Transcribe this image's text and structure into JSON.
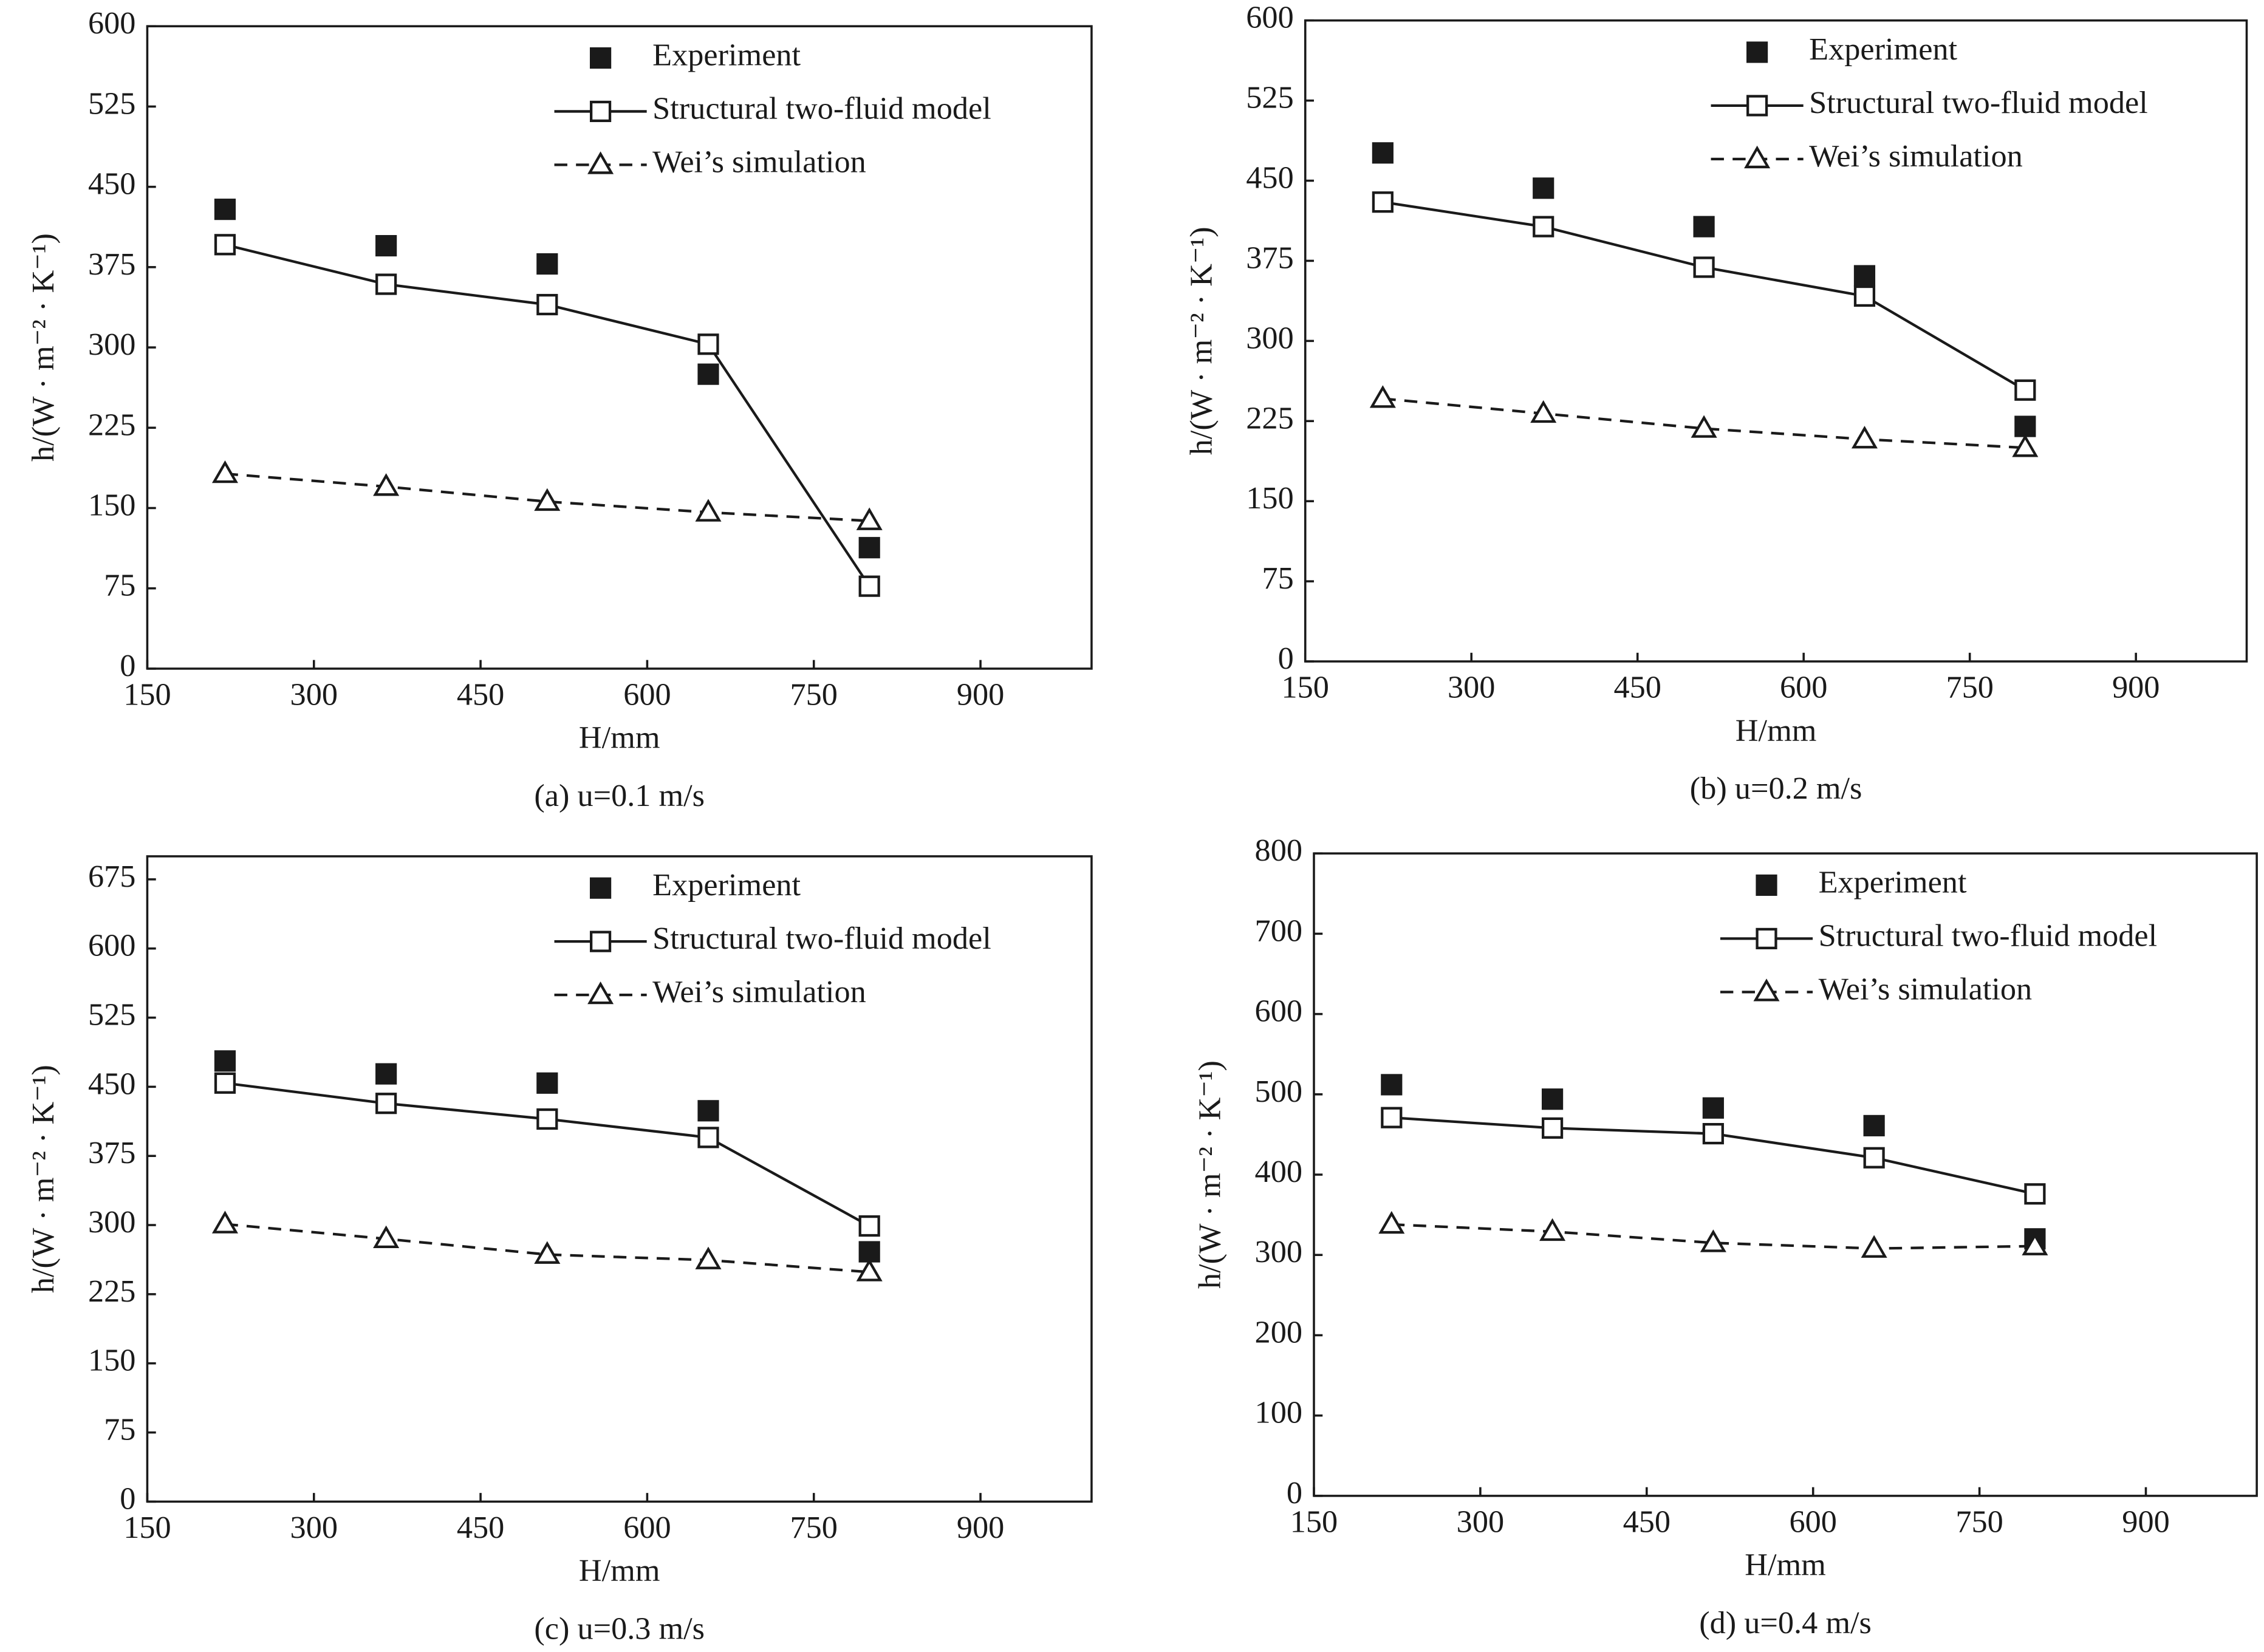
{
  "chart_data": [
    {
      "type": "line",
      "title": "(a) u=0.1 m/s",
      "x_label": "H/mm",
      "y_label": "h/(W · m⁻² · K⁻¹)",
      "x": [
        220,
        365,
        510,
        655,
        800
      ],
      "xlim": [
        150,
        1000
      ],
      "xticks": [
        150,
        300,
        450,
        600,
        750,
        900
      ],
      "ylim": [
        0,
        600
      ],
      "yticks": [
        0,
        75,
        150,
        225,
        300,
        375,
        450,
        525,
        600
      ],
      "legend": "top",
      "series": [
        {
          "name": "Experiment",
          "color": "#1a1a1a",
          "marker": "filled-square",
          "line_style": "none",
          "values": [
            429,
            395,
            378,
            275,
            113
          ]
        },
        {
          "name": "Structural two-fluid model",
          "color": "#1a1a1a",
          "marker": "open-square",
          "line_style": "solid",
          "values": [
            396,
            359,
            340,
            303,
            77
          ]
        },
        {
          "name": "Wei’s simulation",
          "color": "#1a1a1a",
          "marker": "open-triangle",
          "line_style": "dashed",
          "values": [
            182,
            170,
            156,
            146,
            138
          ]
        }
      ]
    },
    {
      "type": "line",
      "title": "(b) u=0.2 m/s",
      "x_label": "H/mm",
      "y_label": "h/(W · m⁻² · K⁻¹)",
      "x": [
        220,
        365,
        510,
        655,
        800
      ],
      "xlim": [
        150,
        1000
      ],
      "xticks": [
        150,
        300,
        450,
        600,
        750,
        900
      ],
      "ylim": [
        0,
        600
      ],
      "yticks": [
        0,
        75,
        150,
        225,
        300,
        375,
        450,
        525,
        600
      ],
      "legend": "top",
      "series": [
        {
          "name": "Experiment",
          "color": "#1a1a1a",
          "marker": "filled-square",
          "line_style": "none",
          "values": [
            476,
            443,
            407,
            361,
            220
          ]
        },
        {
          "name": "Structural two-fluid model",
          "color": "#1a1a1a",
          "marker": "open-square",
          "line_style": "solid",
          "values": [
            430,
            407,
            369,
            342,
            254
          ]
        },
        {
          "name": "Wei’s simulation",
          "color": "#1a1a1a",
          "marker": "open-triangle",
          "line_style": "dashed",
          "values": [
            246,
            232,
            218,
            208,
            200
          ]
        }
      ]
    },
    {
      "type": "line",
      "title": "(c) u=0.3 m/s",
      "x_label": "H/mm",
      "y_label": "h/(W · m⁻² · K⁻¹)",
      "x": [
        220,
        365,
        510,
        655,
        800
      ],
      "xlim": [
        150,
        1000
      ],
      "xticks": [
        150,
        300,
        450,
        600,
        750,
        900
      ],
      "ylim": [
        0,
        700
      ],
      "yticks": [
        0,
        75,
        150,
        225,
        300,
        375,
        450,
        525,
        600,
        675
      ],
      "legend": "top",
      "series": [
        {
          "name": "Experiment",
          "color": "#1a1a1a",
          "marker": "filled-square",
          "line_style": "none",
          "values": [
            478,
            464,
            454,
            424,
            271
          ]
        },
        {
          "name": "Structural two-fluid model",
          "color": "#1a1a1a",
          "marker": "open-square",
          "line_style": "solid",
          "values": [
            454,
            432,
            415,
            395,
            299
          ]
        },
        {
          "name": "Wei’s simulation",
          "color": "#1a1a1a",
          "marker": "open-triangle",
          "line_style": "dashed",
          "values": [
            301,
            285,
            268,
            262,
            249
          ]
        }
      ]
    },
    {
      "type": "line",
      "title": "(d) u=0.4 m/s",
      "x_label": "H/mm",
      "y_label": "h/(W · m⁻² · K⁻¹)",
      "x": [
        220,
        365,
        510,
        655,
        800
      ],
      "xlim": [
        150,
        1000
      ],
      "xticks": [
        150,
        300,
        450,
        600,
        750,
        900
      ],
      "ylim": [
        0,
        800
      ],
      "yticks": [
        0,
        100,
        200,
        300,
        400,
        500,
        600,
        700,
        800
      ],
      "legend": "top",
      "series": [
        {
          "name": "Experiment",
          "color": "#1a1a1a",
          "marker": "filled-square",
          "line_style": "none",
          "values": [
            512,
            494,
            483,
            461,
            320
          ]
        },
        {
          "name": "Structural two-fluid model",
          "color": "#1a1a1a",
          "marker": "open-square",
          "line_style": "solid",
          "values": [
            471,
            458,
            451,
            421,
            376
          ]
        },
        {
          "name": "Wei’s simulation",
          "color": "#1a1a1a",
          "marker": "open-triangle",
          "line_style": "dashed",
          "values": [
            338,
            329,
            315,
            308,
            311
          ]
        }
      ]
    }
  ]
}
